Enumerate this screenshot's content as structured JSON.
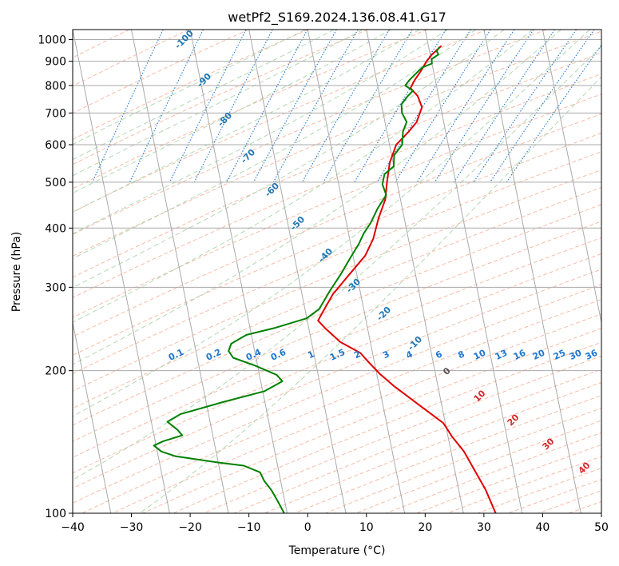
{
  "chart_data": {
    "type": "line",
    "title": "wetPf2_S169.2024.136.08.41.G17",
    "xlabel": "Temperature (°C)",
    "ylabel": "Pressure (hPa)",
    "xlim": [
      -40,
      50
    ],
    "ylim": [
      1050,
      100
    ],
    "y_scale": "log",
    "x_ticks": [
      -40,
      -30,
      -20,
      -10,
      0,
      10,
      20,
      30,
      40,
      50
    ],
    "y_ticks": [
      100,
      200,
      300,
      400,
      500,
      600,
      700,
      800,
      900,
      1000
    ],
    "grid": true,
    "series": [
      {
        "color": "#e00000",
        "points": [
          [
            6.8,
            970
          ],
          [
            5.5,
            930
          ],
          [
            4.8,
            900
          ],
          [
            4.2,
            860
          ],
          [
            3.4,
            820
          ],
          [
            3.0,
            790
          ],
          [
            4.5,
            760
          ],
          [
            5.6,
            720
          ],
          [
            5.2,
            670
          ],
          [
            4.2,
            640
          ],
          [
            2.5,
            600
          ],
          [
            2.0,
            550
          ],
          [
            2.2,
            500
          ],
          [
            2.5,
            460
          ],
          [
            2.0,
            420
          ],
          [
            1.8,
            380
          ],
          [
            1.0,
            350
          ],
          [
            -1.0,
            320
          ],
          [
            -3.2,
            290
          ],
          [
            -4.5,
            262
          ],
          [
            -4.8,
            255
          ],
          [
            -3.2,
            245
          ],
          [
            -0.3,
            230
          ],
          [
            3.5,
            218
          ],
          [
            5.5,
            207
          ],
          [
            7.5,
            197
          ],
          [
            10.5,
            185
          ],
          [
            16.0,
            167
          ],
          [
            20.0,
            155
          ],
          [
            22.0,
            145
          ],
          [
            24.5,
            135
          ],
          [
            27.0,
            123
          ],
          [
            29.5,
            112
          ],
          [
            32.0,
            100
          ]
        ]
      },
      {
        "color": "#008000",
        "points": [
          [
            6.5,
            965
          ],
          [
            6.2,
            945
          ],
          [
            6.6,
            930
          ],
          [
            5.6,
            910
          ],
          [
            5.8,
            890
          ],
          [
            4.4,
            875
          ],
          [
            3.8,
            860
          ],
          [
            2.5,
            820
          ],
          [
            2.0,
            800
          ],
          [
            3.5,
            780
          ],
          [
            2.8,
            760
          ],
          [
            2.0,
            730
          ],
          [
            2.4,
            700
          ],
          [
            3.5,
            670
          ],
          [
            3.2,
            640
          ],
          [
            3.5,
            600
          ],
          [
            2.5,
            570
          ],
          [
            2.8,
            540
          ],
          [
            1.5,
            520
          ],
          [
            1.5,
            495
          ],
          [
            2.5,
            470
          ],
          [
            1.5,
            440
          ],
          [
            0.8,
            410
          ],
          [
            0.0,
            390
          ],
          [
            -0.5,
            370
          ],
          [
            -1.5,
            345
          ],
          [
            -2.5,
            320
          ],
          [
            -3.8,
            295
          ],
          [
            -5.0,
            270
          ],
          [
            -6.8,
            258
          ],
          [
            -12.0,
            246
          ],
          [
            -16.5,
            238
          ],
          [
            -18.8,
            228
          ],
          [
            -19.0,
            220
          ],
          [
            -18.0,
            213
          ],
          [
            -14.0,
            205
          ],
          [
            -10.0,
            196
          ],
          [
            -8.8,
            190
          ],
          [
            -11.5,
            181
          ],
          [
            -18.0,
            172
          ],
          [
            -25.0,
            162
          ],
          [
            -27.0,
            156
          ],
          [
            -25.0,
            150
          ],
          [
            -24.0,
            146
          ],
          [
            -27.0,
            142
          ],
          [
            -28.5,
            139
          ],
          [
            -27.0,
            135
          ],
          [
            -24.5,
            132
          ],
          [
            -17.0,
            128
          ],
          [
            -12.5,
            126
          ],
          [
            -9.5,
            122
          ],
          [
            -8.5,
            117
          ],
          [
            -7.0,
            112
          ],
          [
            -5.5,
            106
          ],
          [
            -4.0,
            100
          ]
        ]
      }
    ],
    "dry_adiabat_labels": [
      "-100",
      "-90",
      "-80",
      "-70",
      "-60",
      "-50",
      "-40",
      "-30",
      "-20",
      "-10",
      "0",
      "10",
      "20",
      "30",
      "40"
    ],
    "mixing_ratio_labels": [
      "0.1",
      "0.2",
      "0.4",
      "0.6",
      "1",
      "1.5",
      "2",
      "3",
      "4",
      "6",
      "8",
      "10",
      "13",
      "16",
      "20",
      "25",
      "30",
      "36"
    ],
    "colors": {
      "temperature": "#e00000",
      "dewpoint": "#008000",
      "isotherm": "#aaaaaa",
      "dry_adiabat": "#f5a58a",
      "moist_adiabat": "#9fcf9f",
      "mixing_ratio": "#1f77d0",
      "label_blue": "#1f77b4",
      "label_red": "#d62728"
    }
  }
}
